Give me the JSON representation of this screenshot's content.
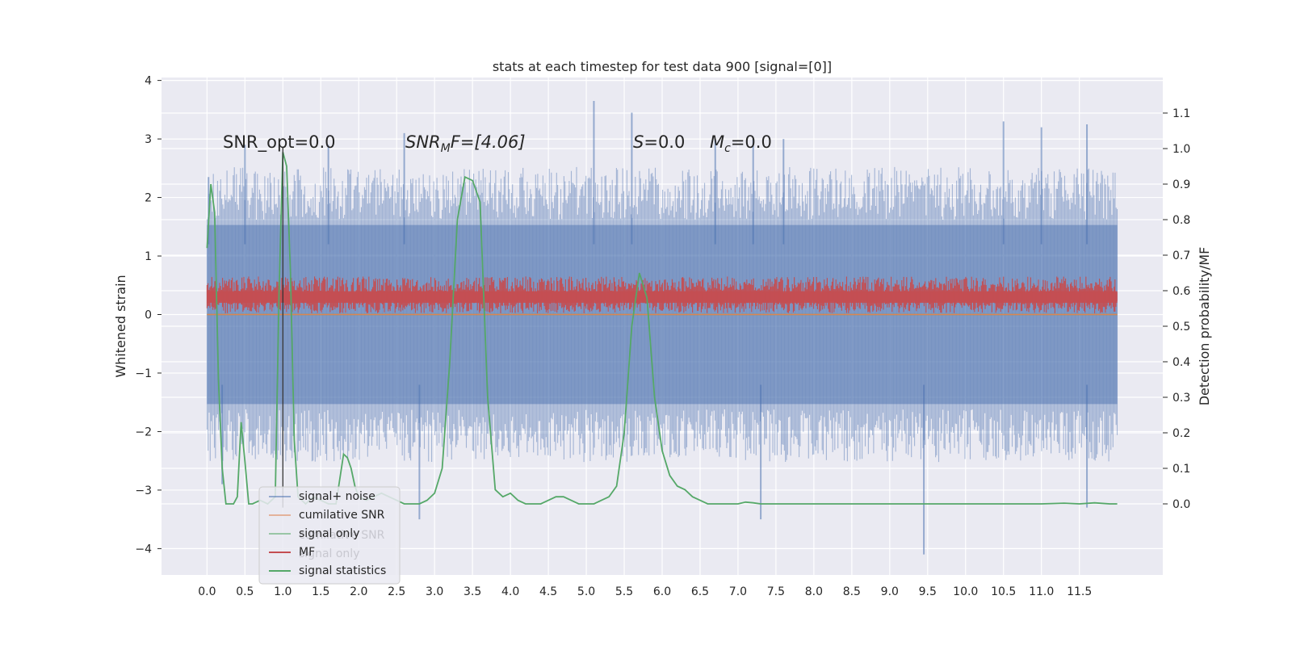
{
  "chart_data": {
    "type": "line",
    "title": "stats at each timestep for test data 900 [signal=[0]]",
    "xlabel": "",
    "ylabel": "Whitened strain",
    "ylabel_right": "Detection probability/MF",
    "xlim": [
      -0.6,
      12.6
    ],
    "ylim": [
      -4.45,
      4.05
    ],
    "ylim_right": [
      -0.2,
      1.2
    ],
    "xticks": [
      "0.0",
      "0.5",
      "1.0",
      "1.5",
      "2.0",
      "2.5",
      "3.0",
      "3.5",
      "4.0",
      "4.5",
      "5.0",
      "5.5",
      "6.0",
      "6.5",
      "7.0",
      "7.5",
      "8.0",
      "8.5",
      "9.0",
      "9.5",
      "10.0",
      "10.5",
      "11.0",
      "11.5"
    ],
    "yticks_left": [
      "4",
      "3",
      "2",
      "1",
      "0",
      "−1",
      "−2",
      "−3",
      "−4"
    ],
    "yticks_right": [
      "1.1",
      "1.0",
      "0.9",
      "0.8",
      "0.7",
      "0.6",
      "0.5",
      "0.4",
      "0.3",
      "0.2",
      "0.1",
      "0.0"
    ],
    "grid": true,
    "legend_placement": "lower-left",
    "annotations": {
      "snr_opt": "SNR_opt=0.0",
      "snr_mf_main": "SNR",
      "snr_mf_sub": "M",
      "snr_mf_rest": "F=[4.06]",
      "s_main": "S",
      "s_rest": "=0.0",
      "mc_main": "M",
      "mc_sub": "c",
      "mc_rest": "=0.0"
    },
    "legend_entries": [
      {
        "label": "signal+ noise",
        "color": "#4c72b0"
      },
      {
        "label": "cumilative SNR",
        "color": "#dd8452"
      },
      {
        "label": "signal only",
        "color": "#55a868"
      },
      {
        "label": "MF",
        "color": "#c44e52"
      },
      {
        "label": "signal statistics",
        "color": "#55a868"
      }
    ],
    "legend_ghost_text": [
      "cumilative SNR",
      "signal only"
    ],
    "series": [
      {
        "name": "signal+ noise",
        "axis": "left",
        "color": "#4c72b0",
        "x_range": [
          0.0,
          12.0
        ],
        "band_upper": 1.8,
        "band_lower": -1.8,
        "peaks": [
          [
            0.02,
            2.35
          ],
          [
            0.5,
            2.9
          ],
          [
            1.6,
            2.9
          ],
          [
            2.6,
            3.1
          ],
          [
            5.1,
            3.65
          ],
          [
            5.6,
            3.45
          ],
          [
            6.7,
            3.0
          ],
          [
            7.2,
            3.0
          ],
          [
            7.6,
            3.0
          ],
          [
            10.5,
            3.3
          ],
          [
            11.0,
            3.2
          ],
          [
            11.6,
            3.25
          ]
        ],
        "troughs": [
          [
            0.2,
            -2.9
          ],
          [
            2.8,
            -3.5
          ],
          [
            7.3,
            -3.5
          ],
          [
            9.45,
            -4.1
          ],
          [
            11.6,
            -3.3
          ]
        ]
      },
      {
        "name": "MF",
        "axis": "left",
        "color": "#c44e52",
        "x_range": [
          0.0,
          12.0
        ],
        "base": 0.3,
        "band_upper": 0.65,
        "band_lower": 0.02
      },
      {
        "name": "signal only",
        "axis": "left",
        "color": "#55a868",
        "x_range": [
          0.0,
          12.0
        ],
        "value": 0.0
      },
      {
        "name": "cumilative SNR",
        "axis": "left",
        "color": "#dd8452",
        "x_range": [
          0.0,
          12.0
        ],
        "value": 0.0
      },
      {
        "name": "signal statistics",
        "axis": "right",
        "color": "#55a868",
        "x": [
          0.0,
          0.05,
          0.1,
          0.15,
          0.2,
          0.25,
          0.3,
          0.35,
          0.4,
          0.45,
          0.5,
          0.55,
          0.6,
          0.7,
          0.8,
          0.9,
          0.95,
          1.0,
          1.05,
          1.1,
          1.15,
          1.2,
          1.3,
          1.4,
          1.5,
          1.6,
          1.7,
          1.8,
          1.85,
          1.9,
          1.95,
          2.0,
          2.1,
          2.2,
          2.3,
          2.4,
          2.5,
          2.6,
          2.7,
          2.8,
          2.9,
          3.0,
          3.1,
          3.2,
          3.3,
          3.4,
          3.5,
          3.6,
          3.7,
          3.8,
          3.9,
          4.0,
          4.1,
          4.2,
          4.3,
          4.4,
          4.5,
          4.6,
          4.7,
          4.8,
          4.9,
          5.0,
          5.1,
          5.2,
          5.3,
          5.4,
          5.5,
          5.6,
          5.7,
          5.8,
          5.9,
          6.0,
          6.1,
          6.2,
          6.3,
          6.4,
          6.5,
          6.6,
          6.7,
          6.8,
          6.9,
          7.0,
          7.1,
          7.2,
          7.3,
          7.5,
          8.0,
          9.0,
          10.0,
          11.0,
          11.3,
          11.5,
          11.7,
          11.9,
          12.0
        ],
        "y": [
          0.72,
          0.9,
          0.82,
          0.35,
          0.1,
          0.0,
          0.0,
          0.0,
          0.02,
          0.23,
          0.12,
          0.0,
          0.0,
          0.01,
          0.0,
          0.02,
          0.6,
          0.99,
          0.95,
          0.65,
          0.18,
          0.02,
          0.0,
          0.02,
          0.01,
          0.0,
          0.0,
          0.14,
          0.13,
          0.1,
          0.05,
          0.02,
          0.01,
          0.02,
          0.03,
          0.02,
          0.01,
          0.0,
          0.0,
          0.0,
          0.01,
          0.03,
          0.1,
          0.4,
          0.8,
          0.92,
          0.91,
          0.85,
          0.3,
          0.04,
          0.02,
          0.03,
          0.01,
          0.0,
          0.0,
          0.0,
          0.01,
          0.02,
          0.02,
          0.01,
          0.0,
          0.0,
          0.0,
          0.01,
          0.02,
          0.05,
          0.2,
          0.5,
          0.65,
          0.58,
          0.3,
          0.15,
          0.08,
          0.05,
          0.04,
          0.02,
          0.01,
          0.0,
          0.0,
          0.0,
          0.0,
          0.0,
          0.005,
          0.003,
          0.0,
          0.0,
          0.0,
          0.0,
          0.0,
          0.0,
          0.002,
          0.0,
          0.003,
          0.0,
          0.0
        ]
      }
    ]
  },
  "colors": {
    "plot_background": "#eaeaf2",
    "grid": "#ffffff",
    "signal_noise": "#4c72b0",
    "mf": "#c44e52",
    "signal_only": "#55a868",
    "cumulative_snr": "#dd8452",
    "statistics": "#55a868"
  }
}
